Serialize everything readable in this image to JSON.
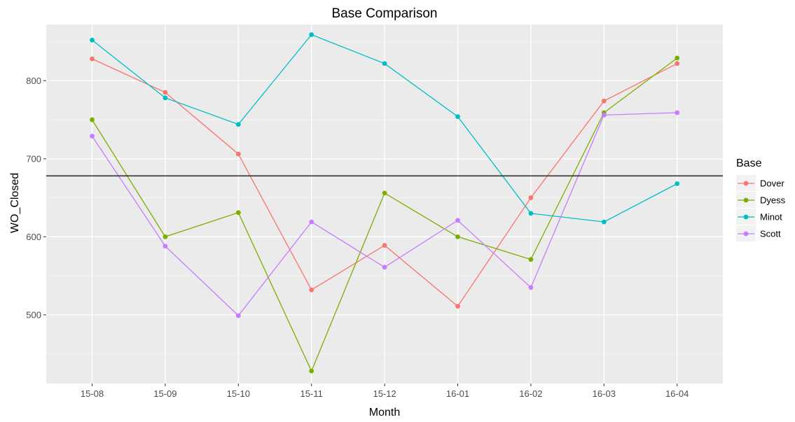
{
  "chart_data": {
    "type": "line",
    "title": "Base Comparison",
    "xlabel": "Month",
    "ylabel": "WO_Closed",
    "categories": [
      "15-08",
      "15-09",
      "15-10",
      "15-11",
      "15-12",
      "16-01",
      "16-02",
      "16-03",
      "16-04"
    ],
    "ylim": [
      412,
      872
    ],
    "yticks": [
      500,
      600,
      700,
      800
    ],
    "grid": true,
    "reference_line": {
      "y": 678,
      "color": "#333333"
    },
    "legend": {
      "title": "Base",
      "position": "right"
    },
    "series": [
      {
        "name": "Dover",
        "color": "#F8766D",
        "values": [
          828,
          785,
          706,
          532,
          589,
          511,
          650,
          774,
          822
        ]
      },
      {
        "name": "Dyess",
        "color": "#7CAE00",
        "values": [
          750,
          600,
          631,
          428,
          656,
          600,
          571,
          759,
          829
        ]
      },
      {
        "name": "Minot",
        "color": "#00BFC4",
        "values": [
          852,
          778,
          744,
          859,
          822,
          754,
          630,
          619,
          668
        ]
      },
      {
        "name": "Scott",
        "color": "#C77CFF",
        "values": [
          729,
          588,
          499,
          619,
          561,
          621,
          535,
          756,
          759
        ]
      }
    ]
  }
}
